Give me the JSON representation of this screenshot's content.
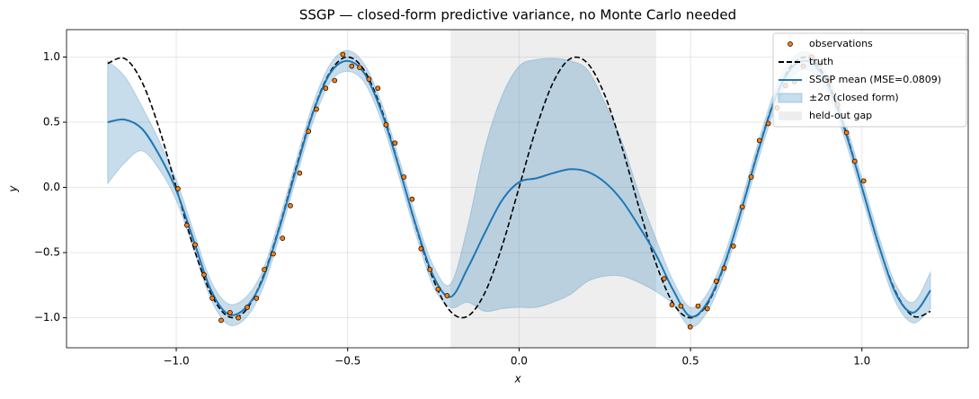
{
  "chart_data": {
    "type": "line",
    "title": "SSGP — closed-form predictive variance, no Monte Carlo needed",
    "xlabel": "x",
    "ylabel": "y",
    "xlim": [
      -1.32,
      1.31
    ],
    "ylim": [
      -1.23,
      1.21
    ],
    "xticks": [
      {
        "value": -1,
        "label": "−1.0"
      },
      {
        "value": -0.5,
        "label": "−0.5"
      },
      {
        "value": 0,
        "label": "0.0"
      },
      {
        "value": 0.5,
        "label": "0.5"
      },
      {
        "value": 1,
        "label": "1.0"
      }
    ],
    "yticks": [
      {
        "value": -1,
        "label": "−1.0"
      },
      {
        "value": -0.5,
        "label": "−0.5"
      },
      {
        "value": 0,
        "label": "0.0"
      },
      {
        "value": 0.5,
        "label": "0.5"
      },
      {
        "value": 1,
        "label": "1.0"
      }
    ],
    "grid": true,
    "legend": "upper right",
    "x": [
      -1.2,
      -1.15,
      -1.1,
      -1.05,
      -1.0,
      -0.95,
      -0.9,
      -0.85,
      -0.8,
      -0.75,
      -0.7,
      -0.65,
      -0.6,
      -0.55,
      -0.5,
      -0.45,
      -0.4,
      -0.35,
      -0.3,
      -0.25,
      -0.2,
      -0.15,
      -0.1,
      -0.05,
      0,
      0.05,
      0.1,
      0.15,
      0.2,
      0.25,
      0.3,
      0.35,
      0.4,
      0.45,
      0.5,
      0.55,
      0.6,
      0.65,
      0.7,
      0.75,
      0.8,
      0.85,
      0.9,
      0.95,
      1.0,
      1.05,
      1.1,
      1.15,
      1.2
    ],
    "series": [
      {
        "name": "observations",
        "kind": "scatter",
        "color": "#ff7f0e",
        "x": [
          -0.995,
          -0.969,
          -0.945,
          -0.919,
          -0.895,
          -0.869,
          -0.843,
          -0.819,
          -0.793,
          -0.766,
          -0.743,
          -0.717,
          -0.69,
          -0.667,
          -0.64,
          -0.614,
          -0.591,
          -0.564,
          -0.538,
          -0.514,
          -0.488,
          -0.465,
          -0.438,
          -0.412,
          -0.388,
          -0.362,
          -0.336,
          -0.312,
          -0.286,
          -0.26,
          -0.236,
          -0.21,
          0.423,
          0.446,
          0.472,
          0.499,
          0.522,
          0.549,
          0.575,
          0.598,
          0.625,
          0.651,
          0.677,
          0.701,
          0.727,
          0.753,
          0.777,
          0.803,
          0.829,
          0.853,
          0.879,
          0.906,
          0.929,
          0.955,
          0.979,
          1.005
        ],
        "values": [
          -0.01,
          -0.29,
          -0.44,
          -0.67,
          -0.85,
          -1.02,
          -0.96,
          -1.0,
          -0.92,
          -0.85,
          -0.63,
          -0.51,
          -0.39,
          -0.14,
          0.11,
          0.43,
          0.6,
          0.76,
          0.82,
          1.02,
          0.93,
          0.92,
          0.83,
          0.76,
          0.48,
          0.34,
          0.08,
          -0.09,
          -0.47,
          -0.63,
          -0.78,
          -0.83,
          -0.7,
          -0.9,
          -0.91,
          -1.07,
          -0.91,
          -0.93,
          -0.72,
          -0.62,
          -0.45,
          -0.15,
          0.08,
          0.36,
          0.49,
          0.61,
          0.78,
          0.81,
          0.93,
          1.0,
          0.95,
          0.81,
          0.63,
          0.42,
          0.2,
          0.05
        ]
      },
      {
        "name": "truth",
        "kind": "line",
        "color": "#000000",
        "dashed": true,
        "values": [
          0.951,
          0.988,
          0.809,
          0.454,
          0,
          -0.454,
          -0.809,
          -0.988,
          -0.951,
          -0.707,
          -0.309,
          0.156,
          0.588,
          0.891,
          1,
          0.891,
          0.588,
          0.156,
          -0.309,
          -0.707,
          -0.951,
          -0.988,
          -0.809,
          -0.454,
          0,
          0.454,
          0.809,
          0.988,
          0.951,
          0.707,
          0.309,
          -0.156,
          -0.588,
          -0.891,
          -1,
          -0.891,
          -0.588,
          -0.156,
          0.309,
          0.707,
          0.951,
          0.988,
          0.809,
          0.454,
          0,
          -0.454,
          -0.809,
          -0.988,
          -0.951
        ]
      },
      {
        "name": "SSGP mean (MSE=0.0809)",
        "kind": "line",
        "color": "#1f77b4",
        "values": [
          0.5,
          0.52,
          0.45,
          0.25,
          -0.02,
          -0.4,
          -0.78,
          -0.97,
          -0.93,
          -0.72,
          -0.32,
          0.14,
          0.58,
          0.88,
          0.97,
          0.87,
          0.57,
          0.15,
          -0.3,
          -0.68,
          -0.84,
          -0.62,
          -0.35,
          -0.1,
          0.04,
          0.07,
          0.11,
          0.14,
          0.12,
          0.04,
          -0.1,
          -0.3,
          -0.52,
          -0.79,
          -0.99,
          -0.88,
          -0.58,
          -0.16,
          0.3,
          0.7,
          0.93,
          0.96,
          0.79,
          0.44,
          0.0,
          -0.45,
          -0.82,
          -0.96,
          -0.79
        ]
      },
      {
        "name": "±2σ (closed form)",
        "kind": "band",
        "color": "#1f77b4",
        "upper": [
          0.97,
          0.85,
          0.62,
          0.36,
          0.06,
          -0.33,
          -0.71,
          -0.89,
          -0.85,
          -0.65,
          -0.25,
          0.21,
          0.65,
          0.95,
          1.05,
          0.94,
          0.64,
          0.22,
          -0.23,
          -0.6,
          -0.74,
          -0.3,
          0.3,
          0.7,
          0.93,
          0.98,
          0.99,
          0.97,
          0.9,
          0.65,
          0.35,
          -0.05,
          -0.4,
          -0.72,
          -0.92,
          -0.81,
          -0.51,
          -0.09,
          0.37,
          0.77,
          1.0,
          1.03,
          0.86,
          0.51,
          0.07,
          -0.38,
          -0.75,
          -0.88,
          -0.65
        ],
        "lower": [
          0.03,
          0.19,
          0.28,
          0.14,
          -0.1,
          -0.47,
          -0.85,
          -1.05,
          -1.01,
          -0.79,
          -0.39,
          0.07,
          0.51,
          0.81,
          0.89,
          0.8,
          0.5,
          0.08,
          -0.37,
          -0.76,
          -0.92,
          -0.88,
          -0.95,
          -0.93,
          -0.92,
          -0.92,
          -0.88,
          -0.82,
          -0.72,
          -0.68,
          -0.68,
          -0.73,
          -0.8,
          -0.9,
          -1.07,
          -0.95,
          -0.65,
          -0.23,
          0.23,
          0.63,
          0.86,
          0.89,
          0.72,
          0.37,
          -0.07,
          -0.52,
          -0.89,
          -1.04,
          -0.93
        ]
      },
      {
        "name": "held-out gap",
        "kind": "span",
        "color": "#d9d9d9",
        "span": [
          -0.2,
          0.4
        ]
      }
    ]
  }
}
